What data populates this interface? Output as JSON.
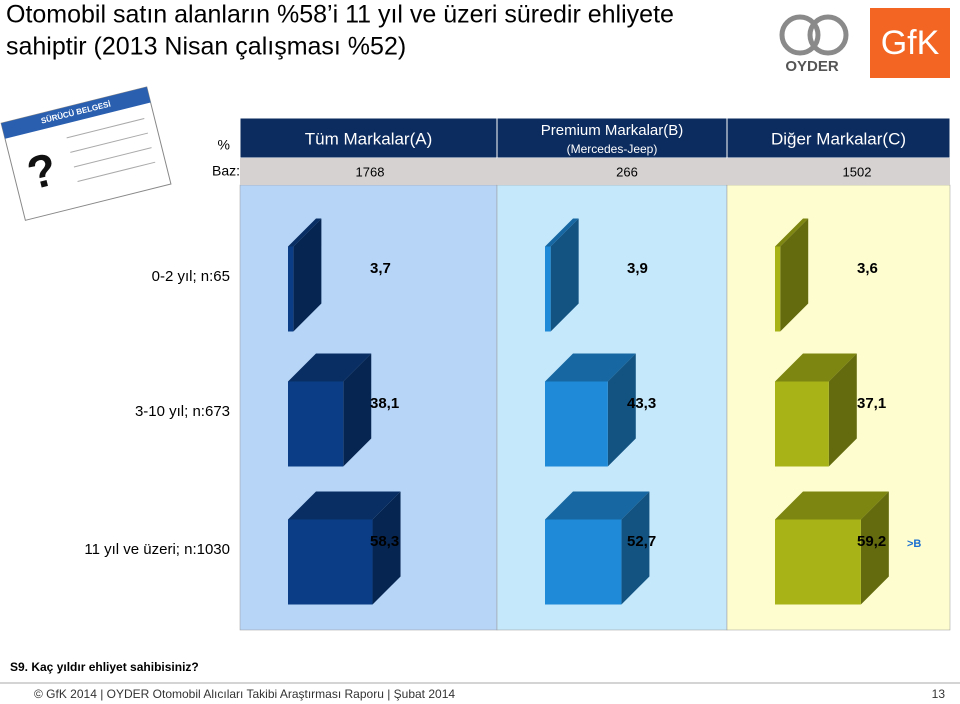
{
  "chart_data": {
    "type": "cube",
    "title": "Otomobil satın alanların %58’i 11 yıl ve üzeri süredir ehliyete",
    "title_line2": "sahiptir (2013 Nisan çalışması %52)",
    "unit_label": "%",
    "base_label": "Baz:",
    "categories": [
      "0-2 yıl; n:65",
      "3-10 yıl; n:673",
      "11 yıl ve üzeri; n:1030"
    ],
    "series": [
      {
        "name": "Tüm Markalar(A)",
        "base": 1768,
        "color": "#0a3d85",
        "panel": "#b7d5f7",
        "values": [
          3.7,
          38.1,
          58.3
        ],
        "value_labels": [
          "3,7",
          "38,1",
          "58,3"
        ]
      },
      {
        "name": "Premium Markalar(B)",
        "subname": "(Mercedes-Jeep)",
        "base": 266,
        "color": "#1e8ad8",
        "panel": "#c6e8fb",
        "values": [
          3.9,
          43.3,
          52.7
        ],
        "value_labels": [
          "3,9",
          "43,3",
          "52,7"
        ]
      },
      {
        "name": "Diğer Markalar(C)",
        "base": 1502,
        "color": "#a7b317",
        "panel": "#fdfdd0",
        "values": [
          3.6,
          37.1,
          59.2
        ],
        "value_labels": [
          "3,6",
          "37,1",
          "59,2"
        ]
      }
    ],
    "annotation": ">B",
    "question": "S9. Kaç yıldır ehliyet sahibisiniz?",
    "footer": "© GfK 2014 | OYDER Otomobil Alıcıları Takibi Araştırması Raporu | Şubat 2014",
    "page_number": "13",
    "logo_oyder": "OYDER",
    "logo_gfk": "GfK",
    "license_title": "SÜRÜCÜ BELGESİ"
  }
}
